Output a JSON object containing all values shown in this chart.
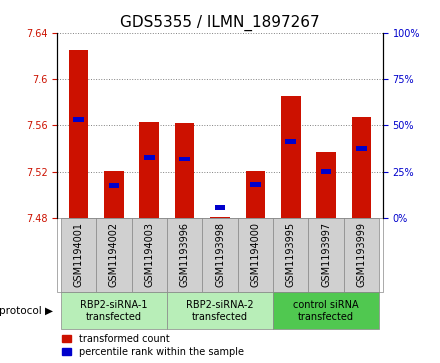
{
  "title": "GDS5355 / ILMN_1897267",
  "samples": [
    "GSM1194001",
    "GSM1194002",
    "GSM1194003",
    "GSM1193996",
    "GSM1193998",
    "GSM1194000",
    "GSM1193995",
    "GSM1193997",
    "GSM1193999"
  ],
  "red_values": [
    7.625,
    7.521,
    7.563,
    7.562,
    7.481,
    7.521,
    7.585,
    7.537,
    7.567
  ],
  "blue_values": [
    7.565,
    7.508,
    7.532,
    7.531,
    7.489,
    7.509,
    7.546,
    7.52,
    7.54
  ],
  "ymin": 7.48,
  "ymax": 7.64,
  "yticks": [
    7.48,
    7.52,
    7.56,
    7.6,
    7.64
  ],
  "right_yticks": [
    0,
    25,
    50,
    75,
    100
  ],
  "groups": [
    {
      "label": "RBP2-siRNA-1\ntransfected",
      "start": 0,
      "end": 3,
      "color": "#b8eeb8"
    },
    {
      "label": "RBP2-siRNA-2\ntransfected",
      "start": 3,
      "end": 6,
      "color": "#b8eeb8"
    },
    {
      "label": "control siRNA\ntransfected",
      "start": 6,
      "end": 9,
      "color": "#50c850"
    }
  ],
  "red_color": "#cc1100",
  "blue_color": "#0000cc",
  "bar_base": 7.48,
  "legend_red": "transformed count",
  "legend_blue": "percentile rank within the sample",
  "protocol_label": "protocol",
  "title_fontsize": 11,
  "tick_fontsize": 7,
  "sample_box_color": "#d0d0d0",
  "bar_width": 0.55,
  "blue_bar_width": 0.3
}
